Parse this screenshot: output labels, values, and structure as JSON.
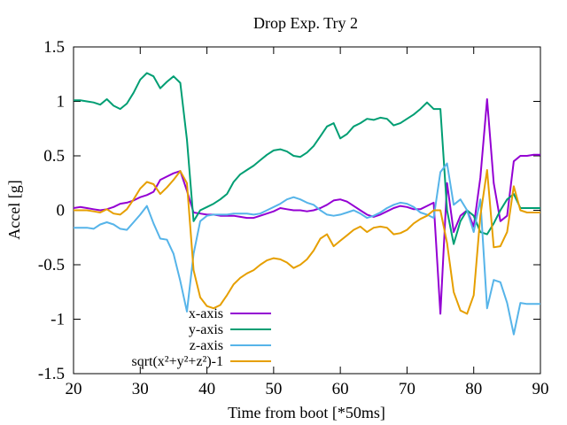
{
  "chart_data": {
    "type": "line",
    "title": "Drop Exp. Try 2",
    "xlabel": "Time from boot [*50ms]",
    "ylabel": "Accel [g]",
    "xlim": [
      20,
      90
    ],
    "ylim": [
      -1.5,
      1.5
    ],
    "xticks": [
      "20",
      "30",
      "40",
      "50",
      "60",
      "70",
      "80",
      "90"
    ],
    "yticks": [
      "-1.5",
      "-1",
      "-0.5",
      "0",
      "0.5",
      "1",
      "1.5"
    ],
    "grid": false,
    "legend_position": "bottom-center",
    "series": [
      {
        "name": "x-axis",
        "color": "#9400d3",
        "points": [
          [
            20,
            0.02
          ],
          [
            21,
            0.03
          ],
          [
            22,
            0.02
          ],
          [
            23,
            0.01
          ],
          [
            24,
            0.0
          ],
          [
            25,
            0.01
          ],
          [
            26,
            0.03
          ],
          [
            27,
            0.06
          ],
          [
            28,
            0.07
          ],
          [
            29,
            0.09
          ],
          [
            30,
            0.12
          ],
          [
            31,
            0.14
          ],
          [
            32,
            0.17
          ],
          [
            33,
            0.28
          ],
          [
            34,
            0.31
          ],
          [
            35,
            0.34
          ],
          [
            36,
            0.36
          ],
          [
            37,
            0.18
          ],
          [
            38,
            -0.02
          ],
          [
            39,
            -0.03
          ],
          [
            40,
            -0.04
          ],
          [
            41,
            -0.04
          ],
          [
            42,
            -0.05
          ],
          [
            43,
            -0.05
          ],
          [
            44,
            -0.05
          ],
          [
            45,
            -0.06
          ],
          [
            46,
            -0.07
          ],
          [
            47,
            -0.07
          ],
          [
            48,
            -0.05
          ],
          [
            49,
            -0.03
          ],
          [
            50,
            -0.01
          ],
          [
            51,
            0.02
          ],
          [
            52,
            0.01
          ],
          [
            53,
            0.0
          ],
          [
            54,
            0.0
          ],
          [
            55,
            -0.01
          ],
          [
            56,
            0.0
          ],
          [
            57,
            0.02
          ],
          [
            58,
            0.05
          ],
          [
            59,
            0.09
          ],
          [
            60,
            0.1
          ],
          [
            61,
            0.08
          ],
          [
            62,
            0.04
          ],
          [
            63,
            0.0
          ],
          [
            64,
            -0.04
          ],
          [
            65,
            -0.06
          ],
          [
            66,
            -0.04
          ],
          [
            67,
            -0.01
          ],
          [
            68,
            0.02
          ],
          [
            69,
            0.04
          ],
          [
            70,
            0.03
          ],
          [
            71,
            0.01
          ],
          [
            72,
            0.01
          ],
          [
            73,
            0.04
          ],
          [
            74,
            0.07
          ],
          [
            75,
            -0.95
          ],
          [
            76,
            0.25
          ],
          [
            77,
            -0.2
          ],
          [
            78,
            -0.05
          ],
          [
            79,
            0.0
          ],
          [
            80,
            -0.15
          ],
          [
            81,
            0.3
          ],
          [
            82,
            1.02
          ],
          [
            83,
            0.25
          ],
          [
            84,
            -0.1
          ],
          [
            85,
            -0.05
          ],
          [
            86,
            0.45
          ],
          [
            87,
            0.5
          ],
          [
            88,
            0.5
          ],
          [
            89,
            0.51
          ],
          [
            90,
            0.51
          ]
        ]
      },
      {
        "name": "y-axis",
        "color": "#009e73",
        "points": [
          [
            20,
            1.01
          ],
          [
            21,
            1.01
          ],
          [
            22,
            1.0
          ],
          [
            23,
            0.99
          ],
          [
            24,
            0.97
          ],
          [
            25,
            1.02
          ],
          [
            26,
            0.96
          ],
          [
            27,
            0.93
          ],
          [
            28,
            0.98
          ],
          [
            29,
            1.08
          ],
          [
            30,
            1.2
          ],
          [
            31,
            1.26
          ],
          [
            32,
            1.23
          ],
          [
            33,
            1.12
          ],
          [
            34,
            1.18
          ],
          [
            35,
            1.23
          ],
          [
            36,
            1.17
          ],
          [
            37,
            0.65
          ],
          [
            38,
            -0.1
          ],
          [
            39,
            0.0
          ],
          [
            40,
            0.03
          ],
          [
            41,
            0.06
          ],
          [
            42,
            0.1
          ],
          [
            43,
            0.15
          ],
          [
            44,
            0.26
          ],
          [
            45,
            0.33
          ],
          [
            46,
            0.37
          ],
          [
            47,
            0.41
          ],
          [
            48,
            0.46
          ],
          [
            49,
            0.51
          ],
          [
            50,
            0.55
          ],
          [
            51,
            0.56
          ],
          [
            52,
            0.54
          ],
          [
            53,
            0.5
          ],
          [
            54,
            0.49
          ],
          [
            55,
            0.53
          ],
          [
            56,
            0.59
          ],
          [
            57,
            0.68
          ],
          [
            58,
            0.77
          ],
          [
            59,
            0.8
          ],
          [
            60,
            0.66
          ],
          [
            61,
            0.7
          ],
          [
            62,
            0.77
          ],
          [
            63,
            0.8
          ],
          [
            64,
            0.84
          ],
          [
            65,
            0.83
          ],
          [
            66,
            0.85
          ],
          [
            67,
            0.84
          ],
          [
            68,
            0.78
          ],
          [
            69,
            0.8
          ],
          [
            70,
            0.84
          ],
          [
            71,
            0.88
          ],
          [
            72,
            0.93
          ],
          [
            73,
            0.99
          ],
          [
            74,
            0.93
          ],
          [
            75,
            0.93
          ],
          [
            76,
            0.0
          ],
          [
            77,
            -0.31
          ],
          [
            78,
            -0.1
          ],
          [
            79,
            0.0
          ],
          [
            80,
            -0.05
          ],
          [
            81,
            -0.2
          ],
          [
            82,
            -0.22
          ],
          [
            83,
            -0.12
          ],
          [
            84,
            0.0
          ],
          [
            85,
            0.1
          ],
          [
            86,
            0.15
          ],
          [
            87,
            0.02
          ],
          [
            88,
            0.02
          ],
          [
            89,
            0.02
          ],
          [
            90,
            0.02
          ]
        ]
      },
      {
        "name": "z-axis",
        "color": "#56b4e9",
        "points": [
          [
            20,
            -0.16
          ],
          [
            21,
            -0.16
          ],
          [
            22,
            -0.16
          ],
          [
            23,
            -0.17
          ],
          [
            24,
            -0.13
          ],
          [
            25,
            -0.11
          ],
          [
            26,
            -0.13
          ],
          [
            27,
            -0.17
          ],
          [
            28,
            -0.18
          ],
          [
            29,
            -0.11
          ],
          [
            30,
            -0.04
          ],
          [
            31,
            0.04
          ],
          [
            32,
            -0.12
          ],
          [
            33,
            -0.26
          ],
          [
            34,
            -0.27
          ],
          [
            35,
            -0.4
          ],
          [
            36,
            -0.65
          ],
          [
            37,
            -0.93
          ],
          [
            38,
            -0.4
          ],
          [
            39,
            -0.1
          ],
          [
            40,
            -0.05
          ],
          [
            41,
            -0.04
          ],
          [
            42,
            -0.04
          ],
          [
            43,
            -0.04
          ],
          [
            44,
            -0.03
          ],
          [
            45,
            -0.03
          ],
          [
            46,
            -0.03
          ],
          [
            47,
            -0.04
          ],
          [
            48,
            -0.03
          ],
          [
            49,
            0.0
          ],
          [
            50,
            0.03
          ],
          [
            51,
            0.06
          ],
          [
            52,
            0.1
          ],
          [
            53,
            0.12
          ],
          [
            54,
            0.1
          ],
          [
            55,
            0.07
          ],
          [
            56,
            0.05
          ],
          [
            57,
            0.0
          ],
          [
            58,
            -0.04
          ],
          [
            59,
            -0.05
          ],
          [
            60,
            -0.04
          ],
          [
            61,
            -0.02
          ],
          [
            62,
            0.0
          ],
          [
            63,
            -0.03
          ],
          [
            64,
            -0.07
          ],
          [
            65,
            -0.05
          ],
          [
            66,
            -0.02
          ],
          [
            67,
            0.02
          ],
          [
            68,
            0.05
          ],
          [
            69,
            0.07
          ],
          [
            70,
            0.06
          ],
          [
            71,
            0.03
          ],
          [
            72,
            -0.02
          ],
          [
            73,
            -0.04
          ],
          [
            74,
            -0.07
          ],
          [
            75,
            0.35
          ],
          [
            76,
            0.43
          ],
          [
            77,
            0.05
          ],
          [
            78,
            0.1
          ],
          [
            79,
            0.0
          ],
          [
            80,
            -0.2
          ],
          [
            81,
            0.1
          ],
          [
            82,
            -0.9
          ],
          [
            83,
            -0.64
          ],
          [
            84,
            -0.66
          ],
          [
            85,
            -0.85
          ],
          [
            86,
            -1.14
          ],
          [
            87,
            -0.85
          ],
          [
            88,
            -0.86
          ],
          [
            89,
            -0.86
          ],
          [
            90,
            -0.86
          ]
        ]
      },
      {
        "name": "sqrt(x²+y²+z²)-1",
        "color": "#e69f00",
        "points": [
          [
            20,
            0.0
          ],
          [
            21,
            0.0
          ],
          [
            22,
            0.0
          ],
          [
            23,
            -0.01
          ],
          [
            24,
            -0.02
          ],
          [
            25,
            0.01
          ],
          [
            26,
            -0.03
          ],
          [
            27,
            -0.04
          ],
          [
            28,
            0.01
          ],
          [
            29,
            0.1
          ],
          [
            30,
            0.2
          ],
          [
            31,
            0.26
          ],
          [
            32,
            0.24
          ],
          [
            33,
            0.15
          ],
          [
            34,
            0.21
          ],
          [
            35,
            0.28
          ],
          [
            36,
            0.36
          ],
          [
            37,
            0.25
          ],
          [
            38,
            -0.55
          ],
          [
            39,
            -0.8
          ],
          [
            40,
            -0.88
          ],
          [
            41,
            -0.9
          ],
          [
            42,
            -0.87
          ],
          [
            43,
            -0.78
          ],
          [
            44,
            -0.68
          ],
          [
            45,
            -0.62
          ],
          [
            46,
            -0.58
          ],
          [
            47,
            -0.55
          ],
          [
            48,
            -0.5
          ],
          [
            49,
            -0.46
          ],
          [
            50,
            -0.44
          ],
          [
            51,
            -0.45
          ],
          [
            52,
            -0.48
          ],
          [
            53,
            -0.53
          ],
          [
            54,
            -0.5
          ],
          [
            55,
            -0.45
          ],
          [
            56,
            -0.37
          ],
          [
            57,
            -0.26
          ],
          [
            58,
            -0.22
          ],
          [
            59,
            -0.33
          ],
          [
            60,
            -0.28
          ],
          [
            61,
            -0.23
          ],
          [
            62,
            -0.18
          ],
          [
            63,
            -0.15
          ],
          [
            64,
            -0.2
          ],
          [
            65,
            -0.16
          ],
          [
            66,
            -0.15
          ],
          [
            67,
            -0.16
          ],
          [
            68,
            -0.22
          ],
          [
            69,
            -0.21
          ],
          [
            70,
            -0.18
          ],
          [
            71,
            -0.12
          ],
          [
            72,
            -0.08
          ],
          [
            73,
            -0.05
          ],
          [
            74,
            0.0
          ],
          [
            75,
            0.0
          ],
          [
            76,
            -0.3
          ],
          [
            77,
            -0.75
          ],
          [
            78,
            -0.92
          ],
          [
            79,
            -0.95
          ],
          [
            80,
            -0.78
          ],
          [
            81,
            -0.05
          ],
          [
            82,
            0.37
          ],
          [
            83,
            -0.34
          ],
          [
            84,
            -0.33
          ],
          [
            85,
            -0.2
          ],
          [
            86,
            0.22
          ],
          [
            87,
            0.0
          ],
          [
            88,
            -0.02
          ],
          [
            89,
            -0.02
          ],
          [
            90,
            -0.02
          ]
        ]
      }
    ]
  }
}
